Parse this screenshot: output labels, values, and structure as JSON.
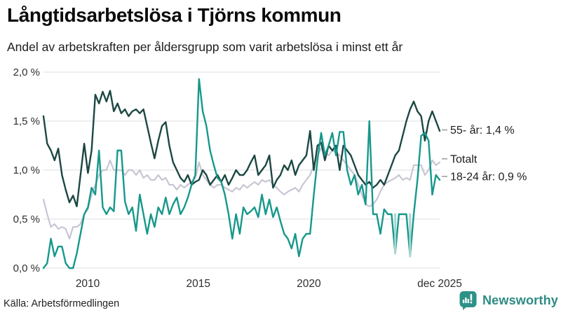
{
  "header": {
    "title": "Långtidsarbetslösa i Tjörns kommun",
    "subtitle": "Andel av arbetskraften per åldersgrupp som varit arbetslösa i minst ett år"
  },
  "footer": {
    "source": "Källa: Arbetsförmedlingen",
    "brand": "Newsworthy",
    "brand_color": "#2E8B84",
    "logo_icon": "bar-chart-exclamation-bubble-icon"
  },
  "colors": {
    "background": "#ffffff",
    "gridline": "#e4e3e9",
    "axis_text": "#2e2e2e",
    "label_text": "#1d1d1d",
    "tick_dash": "#9a9a9a"
  },
  "chart_data": {
    "type": "line",
    "title": "Långtidsarbetslösa i Tjörns kommun",
    "subtitle": "Andel av arbetskraften per åldersgrupp som varit arbetslösa i minst ett år",
    "xlabel": "",
    "ylabel": "",
    "x_range": [
      2008.0,
      2025.92
    ],
    "x_resolution": "monthly, plotted every 2nd month",
    "ylim": [
      0,
      2.0
    ],
    "grid": "horizontal",
    "legend_position": "line-end labels, right side",
    "yticks": [
      {
        "label": "2,0 %",
        "value": 2.0
      },
      {
        "label": "1,5 %",
        "value": 1.5
      },
      {
        "label": "1,0 %",
        "value": 1.0
      },
      {
        "label": "0,5 %",
        "value": 0.5
      },
      {
        "label": "0,0 %",
        "value": 0.0
      }
    ],
    "xticks": [
      {
        "label": "2010",
        "year": 2010
      },
      {
        "label": "2015",
        "year": 2015
      },
      {
        "label": "2020",
        "year": 2020
      },
      {
        "label": "dec 2025",
        "year": 2025.92
      }
    ],
    "series": [
      {
        "name": "55- år",
        "end_label": "55- år: 1,4 %",
        "label_at": 1.41,
        "color": "#1C4742",
        "stroke_width": 2.4,
        "values": [
          1.55,
          1.27,
          1.2,
          1.1,
          1.22,
          0.95,
          0.8,
          0.67,
          0.74,
          0.63,
          0.95,
          1.27,
          0.97,
          1.2,
          1.77,
          1.68,
          1.8,
          1.7,
          1.81,
          1.6,
          1.68,
          1.58,
          1.62,
          1.55,
          1.6,
          1.62,
          1.58,
          1.62,
          1.45,
          1.28,
          1.12,
          1.3,
          1.45,
          1.49,
          1.25,
          1.08,
          1.0,
          0.92,
          0.88,
          0.95,
          0.85,
          0.88,
          0.9,
          1.0,
          0.95,
          0.85,
          0.9,
          0.95,
          0.88,
          0.95,
          0.85,
          0.92,
          1.0,
          0.95,
          0.95,
          1.0,
          1.08,
          1.15,
          0.95,
          1.0,
          1.05,
          1.15,
          0.82,
          0.9,
          0.95,
          1.05,
          1.0,
          1.1,
          0.95,
          1.05,
          1.1,
          1.15,
          1.4,
          1.0,
          1.25,
          1.28,
          1.1,
          1.25,
          1.2,
          1.25,
          1.0,
          1.25,
          1.2,
          1.15,
          1.05,
          0.95,
          0.9,
          0.85,
          0.88,
          0.82,
          0.85,
          0.9,
          0.85,
          0.95,
          1.05,
          1.15,
          1.2,
          1.35,
          1.5,
          1.62,
          1.7,
          1.6,
          1.55,
          1.3,
          1.5,
          1.6,
          1.5,
          1.4
        ]
      },
      {
        "name": "Totalt",
        "end_label": "Totalt",
        "label_at": 1.115,
        "color": "#C8C6D3",
        "stroke_width": 2.2,
        "values": [
          0.7,
          0.55,
          0.42,
          0.45,
          0.4,
          0.42,
          0.4,
          0.3,
          0.42,
          0.42,
          0.45,
          0.55,
          0.6,
          0.75,
          0.85,
          0.95,
          1.0,
          1.0,
          1.1,
          1.0,
          1.0,
          1.0,
          0.95,
          1.0,
          1.0,
          0.95,
          1.0,
          0.92,
          0.95,
          0.9,
          0.9,
          0.95,
          0.9,
          0.92,
          0.85,
          0.85,
          0.8,
          0.85,
          0.82,
          0.85,
          0.88,
          0.92,
          1.08,
          0.95,
          0.9,
          0.85,
          0.82,
          0.85,
          0.85,
          0.82,
          0.8,
          0.78,
          0.82,
          0.8,
          0.85,
          0.82,
          0.85,
          0.88,
          0.85,
          0.9,
          0.88,
          0.9,
          0.85,
          0.82,
          0.78,
          0.75,
          0.78,
          0.8,
          0.82,
          0.78,
          0.85,
          0.9,
          0.95,
          1.05,
          1.15,
          1.22,
          1.18,
          1.15,
          1.2,
          1.18,
          1.15,
          1.1,
          1.05,
          1.0,
          0.95,
          0.85,
          0.75,
          0.65,
          0.63,
          0.65,
          0.7,
          0.78,
          0.85,
          0.88,
          0.9,
          0.92,
          0.95,
          0.9,
          0.92,
          0.9,
          1.05,
          1.05,
          1.05,
          0.95,
          1.0,
          1.1,
          1.05,
          1.08
        ]
      },
      {
        "name": "18-24 år",
        "end_label": "18-24 år: 0,9 %",
        "label_at": 0.935,
        "color": "#16988B",
        "stroke_width": 2.4,
        "values": [
          0.0,
          0.05,
          0.3,
          0.12,
          0.22,
          0.22,
          0.05,
          0.0,
          0.0,
          0.15,
          0.35,
          0.55,
          0.62,
          0.82,
          0.75,
          1.2,
          0.62,
          0.55,
          0.62,
          0.58,
          1.2,
          1.2,
          0.68,
          0.55,
          0.62,
          0.38,
          0.75,
          0.55,
          0.35,
          0.55,
          0.42,
          0.62,
          0.55,
          0.72,
          0.55,
          0.65,
          0.72,
          0.55,
          0.62,
          0.72,
          0.85,
          0.95,
          1.93,
          1.6,
          1.45,
          1.2,
          1.05,
          0.92,
          0.88,
          0.75,
          0.55,
          0.3,
          0.55,
          0.35,
          0.62,
          0.55,
          0.58,
          0.62,
          0.52,
          0.75,
          0.55,
          0.7,
          0.52,
          0.62,
          0.48,
          0.35,
          0.3,
          0.2,
          0.35,
          0.12,
          0.3,
          0.35,
          0.35,
          0.75,
          1.1,
          1.38,
          1.15,
          1.25,
          1.38,
          1.15,
          1.39,
          1.39,
          1.0,
          0.85,
          0.95,
          0.75,
          0.85,
          0.65,
          1.5,
          0.55,
          0.55,
          0.35,
          0.6,
          0.55,
          0.55,
          0.15,
          0.55,
          0.55,
          0.55,
          0.12,
          0.55,
          0.9,
          1.35,
          1.38,
          1.3,
          0.75,
          0.95,
          0.9
        ]
      }
    ],
    "fade_overlays": [
      {
        "series": "18-24 år",
        "point_index": 95,
        "from_pct": 0.55,
        "color": "#A9D6CF"
      },
      {
        "series": "18-24 år",
        "point_index": 99,
        "from_pct": 0.55,
        "color": "#A9D6CF"
      }
    ]
  }
}
